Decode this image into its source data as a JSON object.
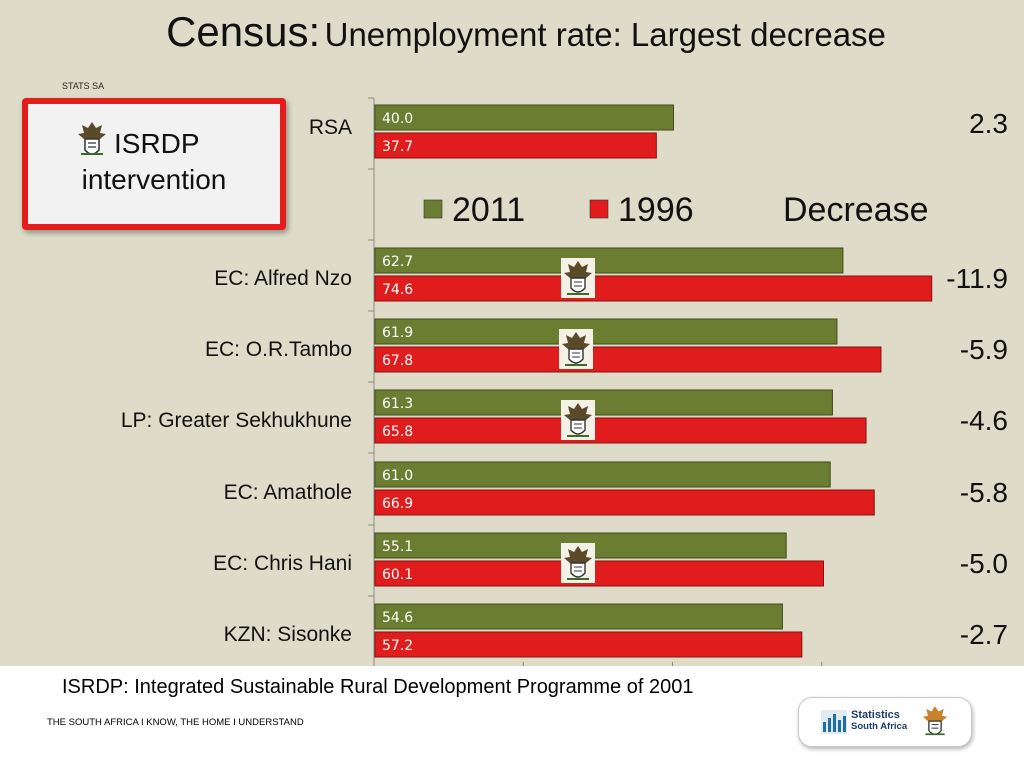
{
  "slide": {
    "title_main": "Census:",
    "title_rest": "Unemployment rate: Largest decrease",
    "source_label": "STATS SA",
    "isrdp_box": {
      "line1": "ISRDP",
      "line2": "intervention"
    },
    "footnote": "ISRDP: Integrated Sustainable Rural Development Programme of 2001",
    "tagline": "THE SOUTH AFRICA I KNOW, THE HOME I UNDERSTAND",
    "logo": {
      "line1": "Statistics",
      "line2": "South Africa"
    },
    "colors": {
      "background": "#dedcc9",
      "box_border": "#e41c1c"
    }
  },
  "chart_data": {
    "type": "bar",
    "orientation": "horizontal",
    "categories": [
      "RSA",
      "EC: Alfred Nzo",
      "EC: O.R.Tambo",
      "LP: Greater Sekhukhune",
      "EC: Amathole",
      "EC: Chris Hani",
      "KZN: Sisonke"
    ],
    "series": [
      {
        "name": "2011",
        "color": "#6b7d30",
        "values": [
          40.0,
          62.7,
          61.9,
          61.3,
          61.0,
          55.1,
          54.6
        ]
      },
      {
        "name": "1996",
        "color": "#e01c1c",
        "values": [
          37.7,
          74.6,
          67.8,
          65.8,
          66.9,
          60.1,
          57.2
        ]
      }
    ],
    "data_labels": {
      "2011": [
        "40.0",
        "62.7",
        "61.9",
        "61.3",
        "61.0",
        "55.1",
        "54.6"
      ],
      "1996": [
        "37.7",
        "74.6",
        "67.8",
        "65.8",
        "66.9",
        "60.1",
        "57.2"
      ]
    },
    "decrease_header": "Decrease",
    "decrease": [
      "2.3",
      "-11.9",
      "-5.9",
      "-4.6",
      "-5.8",
      "-5.0",
      "-2.7"
    ],
    "isrdp_marked": [
      "EC: Alfred Nzo",
      "EC: O.R.Tambo",
      "LP: Greater Sekhukhune",
      "EC: Chris Hani"
    ],
    "legend_position": "top",
    "xlim": [
      0,
      80
    ],
    "grid": true
  }
}
